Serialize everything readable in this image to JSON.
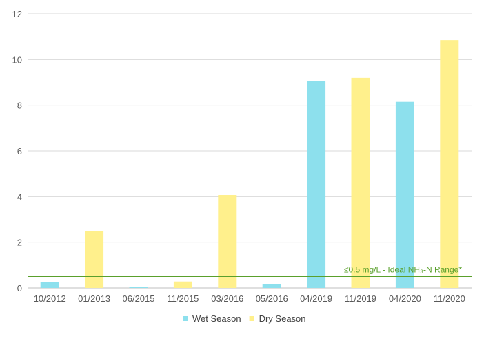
{
  "chart_data": {
    "type": "bar",
    "categories": [
      "10/2012",
      "01/2013",
      "06/2015",
      "11/2015",
      "03/2016",
      "05/2016",
      "04/2019",
      "11/2019",
      "04/2020",
      "11/2020"
    ],
    "series": [
      {
        "name": "Wet Season",
        "color": "#8de0ed",
        "values": [
          0.25,
          null,
          0.06,
          null,
          null,
          0.18,
          9.05,
          null,
          8.15,
          null
        ]
      },
      {
        "name": "Dry Season",
        "color": "#fff08c",
        "values": [
          null,
          2.5,
          null,
          0.28,
          4.07,
          null,
          null,
          9.2,
          null,
          10.85
        ]
      }
    ],
    "ylim": [
      0,
      12
    ],
    "yticks": [
      0,
      2,
      4,
      6,
      8,
      10,
      12
    ],
    "grid": "horizontal",
    "legend": "bottom-center",
    "reference_line": {
      "value": 0.5,
      "label": "≤0.5 mg/L - Ideal NH₃-N Range*",
      "color": "#5aa02c"
    },
    "title": "",
    "xlabel": "",
    "ylabel": ""
  }
}
